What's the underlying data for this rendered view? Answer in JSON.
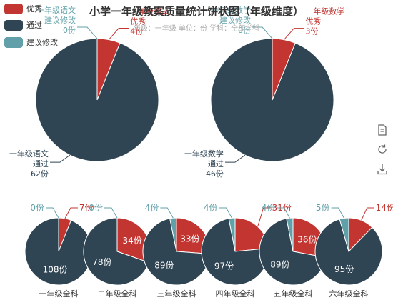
{
  "title": "小学一年级教案质量统计饼状图（年级维度）",
  "subtitle": "年级：一年级    单位：份    学科：全部学科",
  "legend": [
    {
      "label": "优秀",
      "color": "#c23531"
    },
    {
      "label": "通过",
      "color": "#2f4554"
    },
    {
      "label": "建议修改",
      "color": "#61a0a8"
    }
  ],
  "toolbox": {
    "icons": [
      "data-view-icon",
      "restore-icon",
      "save-image-icon"
    ]
  },
  "chart_data": [
    {
      "type": "pie",
      "name": "一年级语文",
      "categories": [
        "优秀",
        "通过",
        "建议修改"
      ],
      "values": [
        4,
        62,
        0
      ]
    },
    {
      "type": "pie",
      "name": "一年级数学",
      "categories": [
        "优秀",
        "通过",
        "建议修改"
      ],
      "values": [
        3,
        46,
        0
      ]
    },
    {
      "type": "pie",
      "name": "一年级全科",
      "categories": [
        "优秀",
        "通过",
        "建议修改"
      ],
      "values": [
        7,
        108,
        0
      ]
    },
    {
      "type": "pie",
      "name": "二年级全科",
      "categories": [
        "优秀",
        "通过",
        "建议修改"
      ],
      "values": [
        34,
        78,
        0
      ]
    },
    {
      "type": "pie",
      "name": "三年级全科",
      "categories": [
        "优秀",
        "通过",
        "建议修改"
      ],
      "values": [
        33,
        89,
        4
      ]
    },
    {
      "type": "pie",
      "name": "四年级全科",
      "categories": [
        "优秀",
        "通过",
        "建议修改"
      ],
      "values": [
        31,
        97,
        4
      ]
    },
    {
      "type": "pie",
      "name": "五年级全科",
      "categories": [
        "优秀",
        "通过",
        "建议修改"
      ],
      "values": [
        36,
        89,
        4
      ]
    },
    {
      "type": "pie",
      "name": "六年级全科",
      "categories": [
        "优秀",
        "通过",
        "建议修改"
      ],
      "values": [
        14,
        95,
        5
      ]
    }
  ],
  "unit_suffix": "份"
}
